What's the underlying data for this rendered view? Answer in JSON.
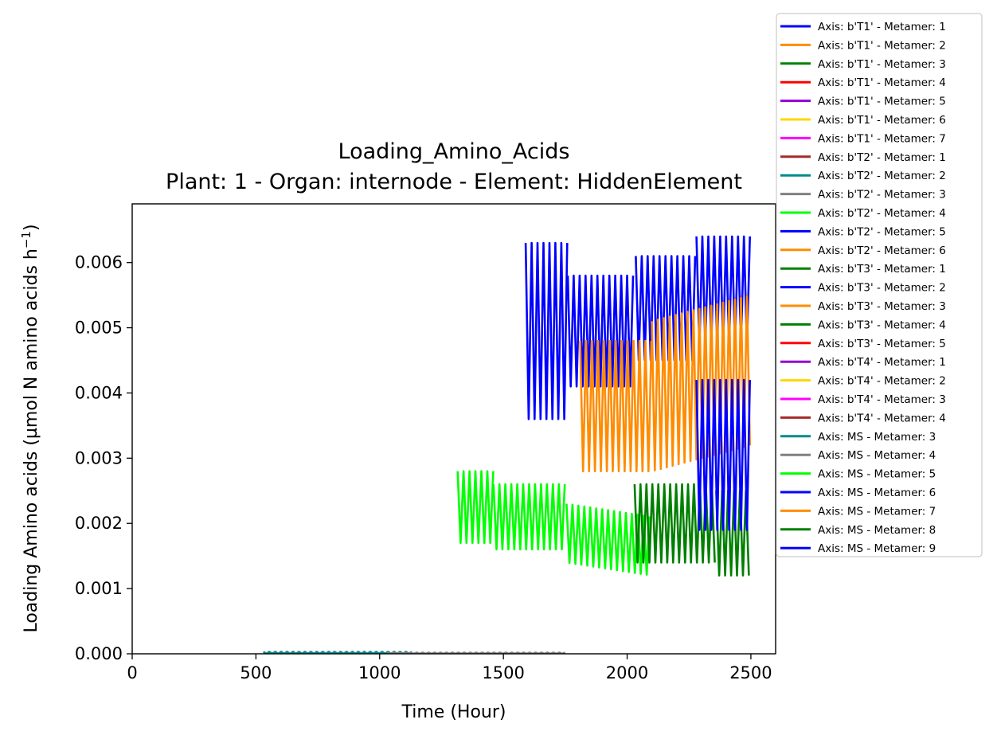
{
  "chart_data": {
    "type": "line",
    "title": "Loading_Amino_Acids",
    "subtitle": "Plant: 1 - Organ: internode - Element: HiddenElement",
    "xlabel": "Time (Hour)",
    "ylabel": "Loading Amino acids (µmol N amino acids h",
    "ylabel_exponent": "−1",
    "ylabel_close": ")",
    "xlim": [
      0,
      2600
    ],
    "ylim": [
      0,
      0.0069
    ],
    "x_ticks": [
      0,
      500,
      1000,
      1500,
      2000,
      2500
    ],
    "x_tick_labels": [
      "0",
      "500",
      "1000",
      "1500",
      "2000",
      "2500"
    ],
    "y_ticks": [
      0,
      0.001,
      0.002,
      0.003,
      0.004,
      0.005,
      0.006
    ],
    "y_tick_labels": [
      "0.000",
      "0.001",
      "0.002",
      "0.003",
      "0.004",
      "0.005",
      "0.006"
    ],
    "grid": false,
    "legend_position": "outside-top-right",
    "series": [
      {
        "name": "Axis: b'T1' - Metamer: 1",
        "color": "#0000ff",
        "segments": []
      },
      {
        "name": "Axis: b'T1' - Metamer: 2",
        "color": "#ff8c00",
        "segments": []
      },
      {
        "name": "Axis: b'T1' - Metamer: 3",
        "color": "#008000",
        "segments": []
      },
      {
        "name": "Axis: b'T1' - Metamer: 4",
        "color": "#ff0000",
        "segments": []
      },
      {
        "name": "Axis: b'T1' - Metamer: 5",
        "color": "#9400d3",
        "segments": []
      },
      {
        "name": "Axis: b'T1' - Metamer: 6",
        "color": "#ffd700",
        "segments": []
      },
      {
        "name": "Axis: b'T1' - Metamer: 7",
        "color": "#ff00ff",
        "segments": []
      },
      {
        "name": "Axis: b'T2' - Metamer: 1",
        "color": "#a52a2a",
        "segments": []
      },
      {
        "name": "Axis: b'T2' - Metamer: 2",
        "color": "#008b8b",
        "segments": []
      },
      {
        "name": "Axis: b'T2' - Metamer: 3",
        "color": "#808080",
        "segments": []
      },
      {
        "name": "Axis: b'T2' - Metamer: 4",
        "color": "#00ff00",
        "segments": []
      },
      {
        "name": "Axis: b'T2' - Metamer: 5",
        "color": "#0000ff",
        "segments": []
      },
      {
        "name": "Axis: b'T2' - Metamer: 6",
        "color": "#ff8c00",
        "segments": []
      },
      {
        "name": "Axis: b'T3' - Metamer: 1",
        "color": "#008000",
        "segments": []
      },
      {
        "name": "Axis: b'T3' - Metamer: 2",
        "color": "#0000ff",
        "segments": []
      },
      {
        "name": "Axis: b'T3' - Metamer: 3",
        "color": "#ff8c00",
        "segments": []
      },
      {
        "name": "Axis: b'T3' - Metamer: 4",
        "color": "#008000",
        "segments": []
      },
      {
        "name": "Axis: b'T3' - Metamer: 5",
        "color": "#ff0000",
        "segments": []
      },
      {
        "name": "Axis: b'T4' - Metamer: 1",
        "color": "#9400d3",
        "segments": []
      },
      {
        "name": "Axis: b'T4' - Metamer: 2",
        "color": "#ffd700",
        "segments": []
      },
      {
        "name": "Axis: b'T4' - Metamer: 3",
        "color": "#ff00ff",
        "segments": []
      },
      {
        "name": "Axis: b'T4' - Metamer: 4",
        "color": "#a52a2a",
        "segments": []
      },
      {
        "name": "Axis: MS - Metamer: 3",
        "color": "#008b8b",
        "segments": [
          {
            "x_start": 530,
            "x_end": 1130,
            "period": 24,
            "low": 0.0,
            "high": 3e-05,
            "trend": 0
          }
        ]
      },
      {
        "name": "Axis: MS - Metamer: 4",
        "color": "#808080",
        "segments": [
          {
            "x_start": 1030,
            "x_end": 1760,
            "period": 24,
            "low": 0.0,
            "high": 2e-05,
            "trend": 0
          }
        ]
      },
      {
        "name": "Axis: MS - Metamer: 5",
        "color": "#00ff00",
        "segments": [
          {
            "x_start": 1315,
            "x_end": 1460,
            "period": 24,
            "low": 0.0017,
            "high": 0.0028,
            "trend": 0
          },
          {
            "x_start": 1460,
            "x_end": 1755,
            "period": 24,
            "low": 0.0016,
            "high": 0.0026,
            "trend": 0
          },
          {
            "x_start": 1755,
            "x_end": 2100,
            "period": 24,
            "low": 0.0014,
            "high": 0.0023,
            "trend": -0.0002
          }
        ]
      },
      {
        "name": "Axis: MS - Metamer: 6",
        "color": "#0000ff",
        "segments": [
          {
            "x_start": 1590,
            "x_end": 1760,
            "period": 24,
            "low": 0.0036,
            "high": 0.0063,
            "trend": 0
          },
          {
            "x_start": 1760,
            "x_end": 2035,
            "period": 24,
            "low": 0.0041,
            "high": 0.0058,
            "trend": 0
          },
          {
            "x_start": 2035,
            "x_end": 2280,
            "period": 24,
            "low": 0.0045,
            "high": 0.0061,
            "trend": 0
          },
          {
            "x_start": 2280,
            "x_end": 2500,
            "period": 24,
            "low": 0.0047,
            "high": 0.0064,
            "trend": 0
          }
        ]
      },
      {
        "name": "Axis: MS - Metamer: 7",
        "color": "#ff8c00",
        "segments": [
          {
            "x_start": 1810,
            "x_end": 2100,
            "period": 24,
            "low": 0.0028,
            "high": 0.0048,
            "trend": 0
          },
          {
            "x_start": 2100,
            "x_end": 2500,
            "period": 24,
            "low": 0.0028,
            "high": 0.0051,
            "trend": 0.0004
          }
        ]
      },
      {
        "name": "Axis: MS - Metamer: 8",
        "color": "#008000",
        "segments": [
          {
            "x_start": 2030,
            "x_end": 2360,
            "period": 24,
            "low": 0.0014,
            "high": 0.0026,
            "trend": 0
          },
          {
            "x_start": 2360,
            "x_end": 2500,
            "period": 24,
            "low": 0.0012,
            "high": 0.0025,
            "trend": 0
          }
        ]
      },
      {
        "name": "Axis: MS - Metamer: 9",
        "color": "#0000ff",
        "segments": [
          {
            "x_start": 2280,
            "x_end": 2500,
            "period": 24,
            "low": 0.0019,
            "high": 0.0042,
            "trend": 0
          }
        ]
      }
    ]
  }
}
